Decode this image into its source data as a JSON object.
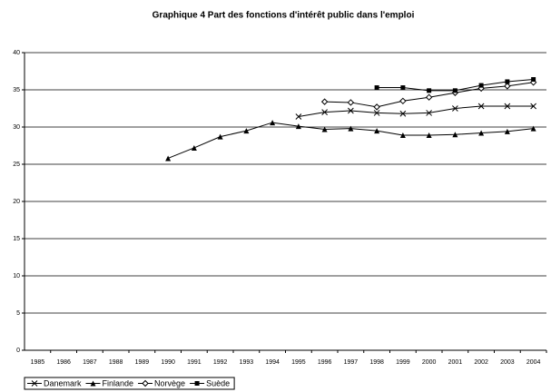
{
  "chart_data": {
    "type": "line",
    "title": "Graphique 4 Part des fonctions d'intérêt public dans l'emploi",
    "categories": [
      "1985",
      "1986",
      "1987",
      "1988",
      "1989",
      "1990",
      "1991",
      "1992",
      "1993",
      "1994",
      "1995",
      "1996",
      "1997",
      "1998",
      "1999",
      "2000",
      "2001",
      "2002",
      "2003",
      "2004"
    ],
    "series": [
      {
        "name": "Danemark",
        "color": "#000000",
        "marker": "x",
        "values": [
          null,
          null,
          null,
          null,
          null,
          null,
          null,
          null,
          null,
          null,
          31.4,
          32.0,
          32.2,
          31.9,
          31.8,
          31.9,
          32.5,
          32.8,
          32.8,
          32.8
        ]
      },
      {
        "name": "Finlande",
        "color": "#000000",
        "marker": "triangle",
        "values": [
          null,
          null,
          null,
          null,
          null,
          25.8,
          27.2,
          28.7,
          29.5,
          30.6,
          30.1,
          29.7,
          29.8,
          29.5,
          28.9,
          28.9,
          29.0,
          29.2,
          29.4,
          29.8
        ]
      },
      {
        "name": "Norvège",
        "color": "#000000",
        "marker": "diamond",
        "values": [
          null,
          null,
          null,
          null,
          null,
          null,
          null,
          null,
          null,
          null,
          null,
          33.4,
          33.3,
          32.7,
          33.5,
          34.0,
          34.6,
          35.2,
          35.5,
          36.0
        ]
      },
      {
        "name": "Suède",
        "color": "#000000",
        "marker": "square",
        "values": [
          null,
          null,
          null,
          null,
          null,
          null,
          null,
          null,
          null,
          null,
          null,
          null,
          null,
          35.3,
          35.3,
          34.9,
          34.9,
          35.6,
          36.1,
          36.4
        ]
      }
    ],
    "ylim": [
      0,
      40
    ],
    "yticks": [
      0,
      5,
      10,
      15,
      20,
      25,
      30,
      35,
      40
    ],
    "grid": true,
    "legend": "bottom-left"
  }
}
